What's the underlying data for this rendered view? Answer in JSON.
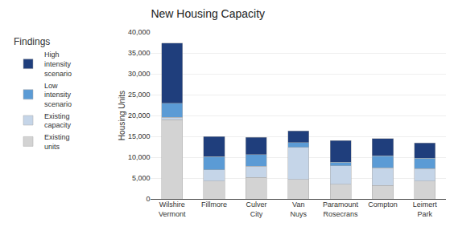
{
  "chart_data": {
    "type": "bar",
    "stacked": true,
    "title": "New Housing Capacity",
    "ylabel": "Housing Units",
    "legend_title": "Findings",
    "legend": "left",
    "categories": [
      "Wilshire\nVermont",
      "Fillmore",
      "Culver\nCity",
      "Van\nNuys",
      "Paramount\nRosecrans",
      "Compton",
      "Leimert\nPark"
    ],
    "series": [
      {
        "name": "Existing\nunits",
        "color": "#d3d3d3",
        "values": [
          19000,
          4300,
          5100,
          4700,
          3500,
          3200,
          4300
        ]
      },
      {
        "name": "Existing\ncapacity",
        "color": "#c5d5e8",
        "values": [
          600,
          2700,
          2700,
          7700,
          4400,
          4300,
          3000
        ]
      },
      {
        "name": "Low\nintensity\nscenario",
        "color": "#5b9bd5",
        "values": [
          3300,
          3100,
          2800,
          1100,
          900,
          2800,
          2500
        ]
      },
      {
        "name": "High\nintensity\nscenario",
        "color": "#1f3e7c",
        "values": [
          14500,
          4900,
          4200,
          2800,
          5200,
          4200,
          3600
        ]
      }
    ],
    "ylim": [
      0,
      40000
    ],
    "yticks": [
      0,
      {
        "value": 5000,
        "label": "5,000"
      },
      {
        "value": 10000,
        "label": "10,000"
      },
      {
        "value": 15000,
        "label": "15,000"
      },
      {
        "value": 20000,
        "label": "20,000"
      },
      {
        "value": 25000,
        "label": "25,000"
      },
      {
        "value": 30000,
        "label": "30,000"
      },
      {
        "value": 35000,
        "label": "35,000"
      },
      {
        "value": 40000,
        "label": "40,000"
      }
    ],
    "grid": true
  }
}
